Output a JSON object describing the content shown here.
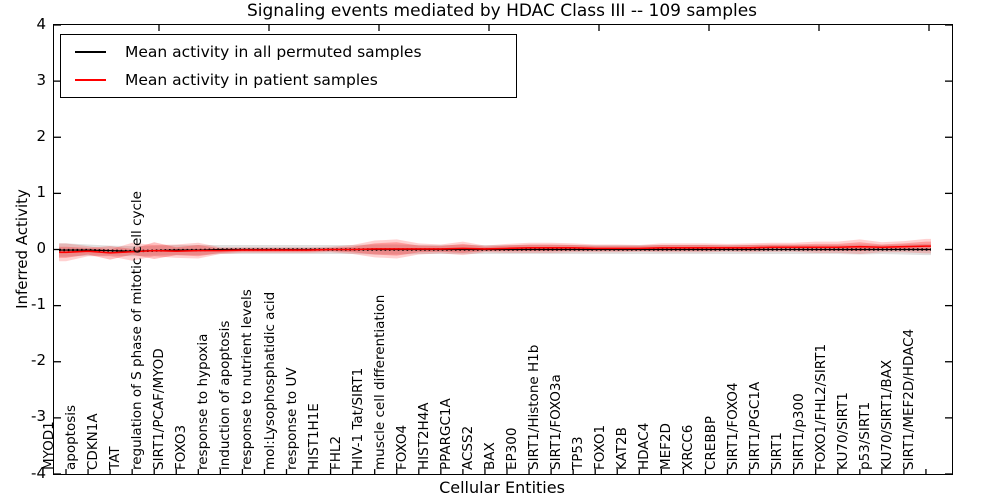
{
  "figure": {
    "title": "Signaling events mediated by HDAC Class III -- 109 samples",
    "background_color": "#ffffff",
    "axis_color": "#000000"
  },
  "chart_data": {
    "type": "line",
    "title": "Signaling events mediated by HDAC Class III -- 109 samples",
    "xlabel": "Cellular Entities",
    "ylabel": "Inferred Activity",
    "ylim": [
      -4,
      4
    ],
    "ytick_labels": [
      "4",
      "3",
      "2",
      "1",
      "0",
      "-1",
      "-2",
      "-3",
      "-4"
    ],
    "grid": false,
    "legend_position": "upper left",
    "categories": [
      "MYOD1",
      "apoptosis",
      "CDKN1A",
      "TAT",
      "regulation of S phase of mitotic cell cycle",
      "SIRT1/PCAF/MYOD",
      "FOXO3",
      "response to hypoxia",
      "induction of apoptosis",
      "response to nutrient levels",
      "mol:Lysophosphatidic acid",
      "response to UV",
      "HIST1H1E",
      "FHL2",
      "HIV-1 Tat/SIRT1",
      "muscle cell differentiation",
      "FOXO4",
      "HIST2H4A",
      "PPARGC1A",
      "ACSS2",
      "BAX",
      "EP300",
      "SIRT1/Histone H1b",
      "SIRT1/FOXO3a",
      "TP53",
      "FOXO1",
      "KAT2B",
      "HDAC4",
      "MEF2D",
      "XRCC6",
      "CREBBP",
      "SIRT1/FOXO4",
      "SIRT1/PGC1A",
      "SIRT1",
      "SIRT1/p300",
      "FOXO1/FHL2/SIRT1",
      "KU70/SIRT1",
      "p53/SIRT1",
      "KU70/SIRT1/BAX",
      "SIRT1/MEF2D/HDAC4"
    ],
    "series": [
      {
        "name": "Mean activity in all permuted samples",
        "color": "#000000",
        "values": [
          -0.01,
          -0.01,
          -0.02,
          -0.03,
          -0.02,
          -0.01,
          -0.01,
          0.0,
          0.0,
          0.0,
          0.0,
          0.0,
          0.0,
          0.0,
          0.0,
          0.0,
          0.0,
          0.0,
          0.0,
          0.0,
          0.0,
          0.0,
          0.0,
          0.0,
          0.0,
          0.0,
          0.0,
          0.0,
          0.0,
          0.0,
          0.0,
          0.0,
          0.0,
          0.0,
          0.0,
          0.0,
          0.0,
          0.0,
          0.0,
          0.0
        ]
      },
      {
        "name": "Mean activity in patient samples",
        "color": "#ff0000",
        "values": [
          -0.05,
          -0.03,
          -0.06,
          -0.04,
          -0.02,
          -0.03,
          -0.02,
          -0.02,
          -0.01,
          -0.01,
          -0.01,
          -0.01,
          0.0,
          0.0,
          0.01,
          0.01,
          0.01,
          0.01,
          0.02,
          0.01,
          0.02,
          0.03,
          0.03,
          0.03,
          0.02,
          0.02,
          0.02,
          0.03,
          0.03,
          0.03,
          0.03,
          0.03,
          0.04,
          0.04,
          0.04,
          0.04,
          0.05,
          0.04,
          0.05,
          0.06
        ]
      }
    ],
    "bands": [
      {
        "name": "permuted-std-band",
        "series": 0,
        "color": "#000000",
        "opacity": 0.12,
        "half_widths": [
          0.12,
          0.1,
          0.09,
          0.09,
          0.09,
          0.09,
          0.09,
          0.08,
          0.08,
          0.08,
          0.08,
          0.08,
          0.08,
          0.08,
          0.09,
          0.09,
          0.08,
          0.08,
          0.08,
          0.08,
          0.08,
          0.08,
          0.08,
          0.08,
          0.08,
          0.08,
          0.08,
          0.08,
          0.08,
          0.08,
          0.08,
          0.08,
          0.08,
          0.08,
          0.08,
          0.08,
          0.09,
          0.08,
          0.09,
          0.1
        ]
      },
      {
        "name": "patient-outer-band",
        "series": 1,
        "color": "#ff0000",
        "opacity": 0.18,
        "half_widths": [
          0.16,
          0.09,
          0.06,
          0.16,
          0.1,
          0.12,
          0.14,
          0.06,
          0.05,
          0.05,
          0.05,
          0.05,
          0.05,
          0.08,
          0.15,
          0.17,
          0.1,
          0.08,
          0.12,
          0.06,
          0.08,
          0.09,
          0.09,
          0.08,
          0.07,
          0.07,
          0.06,
          0.08,
          0.08,
          0.08,
          0.07,
          0.08,
          0.08,
          0.08,
          0.1,
          0.1,
          0.13,
          0.09,
          0.1,
          0.13
        ]
      },
      {
        "name": "patient-inner-band",
        "series": 1,
        "color": "#ff0000",
        "opacity": 0.25,
        "half_widths": [
          0.1,
          0.06,
          0.12,
          0.05,
          0.15,
          0.07,
          0.1,
          0.04,
          0.03,
          0.03,
          0.03,
          0.03,
          0.03,
          0.05,
          0.1,
          0.12,
          0.06,
          0.05,
          0.08,
          0.04,
          0.05,
          0.06,
          0.06,
          0.05,
          0.04,
          0.04,
          0.04,
          0.05,
          0.05,
          0.05,
          0.04,
          0.05,
          0.05,
          0.05,
          0.06,
          0.06,
          0.08,
          0.05,
          0.06,
          0.08
        ]
      }
    ]
  }
}
